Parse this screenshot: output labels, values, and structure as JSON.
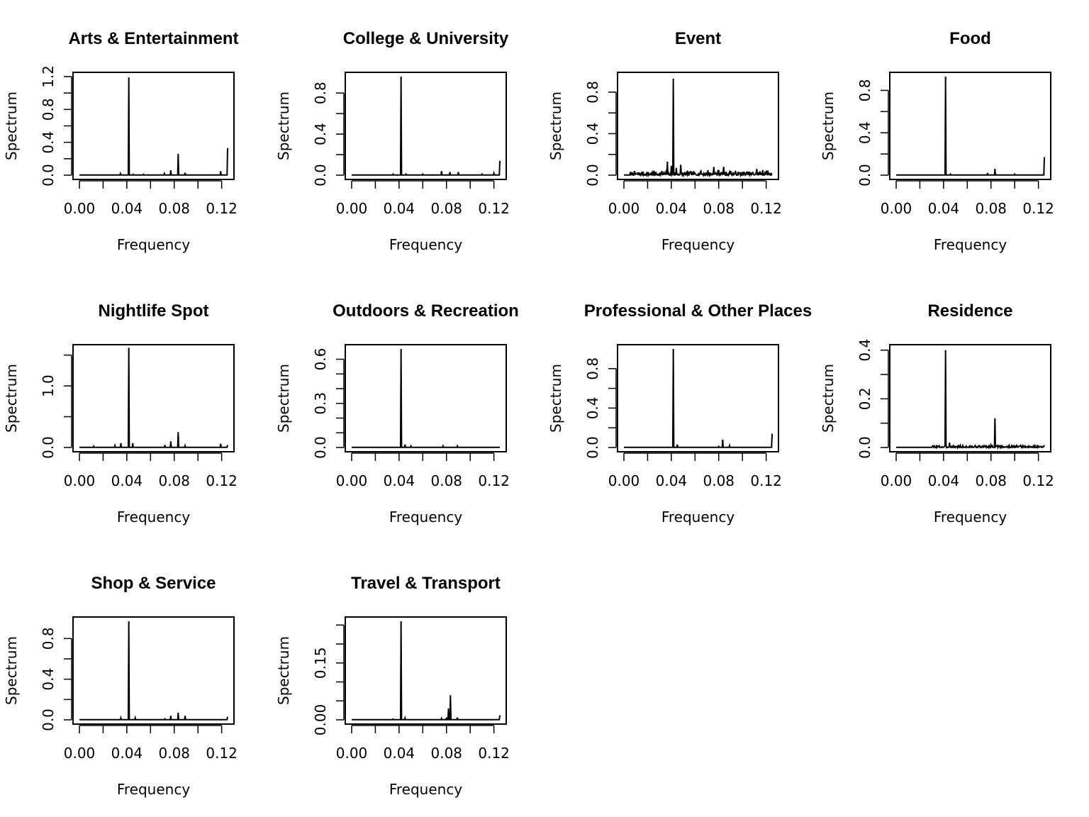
{
  "chart_data": [
    {
      "type": "line",
      "title": "Arts & Entertainment",
      "xlabel": "Frequency",
      "ylabel": "Spectrum",
      "xlim": [
        0,
        0.125
      ],
      "ylim": [
        0,
        1.2
      ],
      "xticks": [
        0.0,
        0.02,
        0.04,
        0.06,
        0.08,
        0.1,
        0.12
      ],
      "xtick_labels": [
        "0.00",
        "0.04",
        "0.08",
        "0.12"
      ],
      "xtick_label_values": [
        0.0,
        0.04,
        0.08,
        0.12
      ],
      "yticks": [
        0.0,
        0.2,
        0.4,
        0.6,
        0.8,
        1.0,
        1.2
      ],
      "ytick_labels": [
        "0.0",
        "0.4",
        "0.8",
        "1.2"
      ],
      "ytick_label_values": [
        0.0,
        0.4,
        0.8,
        1.2
      ],
      "peaks": [
        [
          0.0345,
          0.02
        ],
        [
          0.0417,
          1.19
        ],
        [
          0.0455,
          0.01
        ],
        [
          0.054,
          0.01
        ],
        [
          0.0715,
          0.02
        ],
        [
          0.077,
          0.06
        ],
        [
          0.0833,
          0.26
        ],
        [
          0.089,
          0.03
        ],
        [
          0.119,
          0.05
        ],
        [
          0.125,
          0.33
        ]
      ]
    },
    {
      "type": "line",
      "title": "College & University",
      "xlabel": "Frequency",
      "ylabel": "Spectrum",
      "xlim": [
        0,
        0.125
      ],
      "ylim": [
        0,
        0.96
      ],
      "xticks": [
        0.0,
        0.02,
        0.04,
        0.06,
        0.08,
        0.1,
        0.12
      ],
      "xtick_labels": [
        "0.00",
        "0.04",
        "0.08",
        "0.12"
      ],
      "xtick_label_values": [
        0.0,
        0.04,
        0.08,
        0.12
      ],
      "yticks": [
        0.0,
        0.2,
        0.4,
        0.6,
        0.8
      ],
      "ytick_labels": [
        "0.0",
        "0.4",
        "0.8"
      ],
      "ytick_label_values": [
        0.0,
        0.4,
        0.8
      ],
      "peaks": [
        [
          0.035,
          0.01
        ],
        [
          0.0417,
          0.96
        ],
        [
          0.046,
          0.01
        ],
        [
          0.06,
          0.01
        ],
        [
          0.076,
          0.04
        ],
        [
          0.083,
          0.03
        ],
        [
          0.09,
          0.03
        ],
        [
          0.11,
          0.01
        ],
        [
          0.12,
          0.02
        ],
        [
          0.125,
          0.14
        ]
      ]
    },
    {
      "type": "line",
      "title": "Event",
      "xlabel": "Frequency",
      "ylabel": "Spectrum",
      "xlim": [
        0,
        0.125
      ],
      "ylim": [
        0,
        0.95
      ],
      "xticks": [
        0.0,
        0.02,
        0.04,
        0.06,
        0.08,
        0.1,
        0.12
      ],
      "xtick_labels": [
        "0.00",
        "0.04",
        "0.08",
        "0.12"
      ],
      "xtick_label_values": [
        0.0,
        0.04,
        0.08,
        0.12
      ],
      "yticks": [
        0.0,
        0.2,
        0.4,
        0.6,
        0.8
      ],
      "ytick_labels": [
        "0.0",
        "0.4",
        "0.8"
      ],
      "ytick_label_values": [
        0.0,
        0.4,
        0.8
      ],
      "noise": {
        "seed": 7,
        "level": 0.025,
        "from": 0.005
      },
      "peaks": [
        [
          0.026,
          0.03
        ],
        [
          0.032,
          0.04
        ],
        [
          0.0365,
          0.13
        ],
        [
          0.04,
          0.09
        ],
        [
          0.0417,
          0.93
        ],
        [
          0.044,
          0.07
        ],
        [
          0.048,
          0.1
        ],
        [
          0.054,
          0.03
        ],
        [
          0.065,
          0.04
        ],
        [
          0.071,
          0.05
        ],
        [
          0.076,
          0.08
        ],
        [
          0.08,
          0.05
        ],
        [
          0.084,
          0.08
        ],
        [
          0.09,
          0.04
        ],
        [
          0.1,
          0.03
        ],
        [
          0.112,
          0.06
        ],
        [
          0.117,
          0.05
        ],
        [
          0.121,
          0.03
        ]
      ]
    },
    {
      "type": "line",
      "title": "Food",
      "xlabel": "Frequency",
      "ylabel": "Spectrum",
      "xlim": [
        0,
        0.125
      ],
      "ylim": [
        0,
        0.93
      ],
      "xticks": [
        0.0,
        0.02,
        0.04,
        0.06,
        0.08,
        0.1,
        0.12
      ],
      "xtick_labels": [
        "0.00",
        "0.04",
        "0.08",
        "0.12"
      ],
      "xtick_label_values": [
        0.0,
        0.04,
        0.08,
        0.12
      ],
      "yticks": [
        0.0,
        0.2,
        0.4,
        0.6,
        0.8
      ],
      "ytick_labels": [
        "0.0",
        "0.4",
        "0.8"
      ],
      "ytick_label_values": [
        0.0,
        0.4,
        0.8
      ],
      "peaks": [
        [
          0.0417,
          0.93
        ],
        [
          0.046,
          0.01
        ],
        [
          0.077,
          0.02
        ],
        [
          0.0833,
          0.06
        ],
        [
          0.1,
          0.01
        ],
        [
          0.125,
          0.17
        ]
      ]
    },
    {
      "type": "line",
      "title": "Nightlife Spot",
      "xlabel": "Frequency",
      "ylabel": "Spectrum",
      "xlim": [
        0,
        0.125
      ],
      "ylim": [
        0,
        1.6
      ],
      "xticks": [
        0.0,
        0.02,
        0.04,
        0.06,
        0.08,
        0.1,
        0.12
      ],
      "xtick_labels": [
        "0.00",
        "0.04",
        "0.08",
        "0.12"
      ],
      "xtick_label_values": [
        0.0,
        0.04,
        0.08,
        0.12
      ],
      "yticks": [
        0.0,
        0.5,
        1.0,
        1.5
      ],
      "ytick_labels": [
        "0.0",
        "1.0"
      ],
      "ytick_label_values": [
        0.0,
        1.0
      ],
      "peaks": [
        [
          0.012,
          0.02
        ],
        [
          0.03,
          0.03
        ],
        [
          0.035,
          0.07
        ],
        [
          0.0417,
          1.62
        ],
        [
          0.045,
          0.07
        ],
        [
          0.072,
          0.04
        ],
        [
          0.077,
          0.1
        ],
        [
          0.0833,
          0.25
        ],
        [
          0.089,
          0.03
        ],
        [
          0.119,
          0.06
        ],
        [
          0.125,
          0.04
        ]
      ]
    },
    {
      "type": "line",
      "title": "Outdoors & Recreation",
      "xlabel": "Frequency",
      "ylabel": "Spectrum",
      "xlim": [
        0,
        0.125
      ],
      "ylim": [
        0,
        0.67
      ],
      "xticks": [
        0.0,
        0.02,
        0.04,
        0.06,
        0.08,
        0.1,
        0.12
      ],
      "xtick_labels": [
        "0.00",
        "0.04",
        "0.08",
        "0.12"
      ],
      "xtick_label_values": [
        0.0,
        0.04,
        0.08,
        0.12
      ],
      "yticks": [
        0.0,
        0.1,
        0.2,
        0.3,
        0.4,
        0.5,
        0.6
      ],
      "ytick_labels": [
        "0.0",
        "0.3",
        "0.6"
      ],
      "ytick_label_values": [
        0.0,
        0.3,
        0.6
      ],
      "peaks": [
        [
          0.0417,
          0.67
        ],
        [
          0.045,
          0.02
        ],
        [
          0.05,
          0.01
        ],
        [
          0.077,
          0.01
        ],
        [
          0.089,
          0.01
        ]
      ]
    },
    {
      "type": "line",
      "title": "Professional & Other Places",
      "xlabel": "Frequency",
      "ylabel": "Spectrum",
      "xlim": [
        0,
        0.125
      ],
      "ylim": [
        0,
        1.0
      ],
      "xticks": [
        0.0,
        0.02,
        0.04,
        0.06,
        0.08,
        0.1,
        0.12
      ],
      "xtick_labels": [
        "0.00",
        "0.04",
        "0.08",
        "0.12"
      ],
      "xtick_label_values": [
        0.0,
        0.04,
        0.08,
        0.12
      ],
      "yticks": [
        0.0,
        0.2,
        0.4,
        0.6,
        0.8
      ],
      "ytick_labels": [
        "0.0",
        "0.4",
        "0.8"
      ],
      "ytick_label_values": [
        0.0,
        0.4,
        0.8
      ],
      "peaks": [
        [
          0.0417,
          1.0
        ],
        [
          0.045,
          0.03
        ],
        [
          0.08,
          0.01
        ],
        [
          0.0833,
          0.08
        ],
        [
          0.089,
          0.02
        ],
        [
          0.125,
          0.14
        ]
      ]
    },
    {
      "type": "line",
      "title": "Residence",
      "xlabel": "Frequency",
      "ylabel": "Spectrum",
      "xlim": [
        0,
        0.125
      ],
      "ylim": [
        0,
        0.405
      ],
      "xticks": [
        0.0,
        0.02,
        0.04,
        0.06,
        0.08,
        0.1,
        0.12
      ],
      "xtick_labels": [
        "0.00",
        "0.04",
        "0.08",
        "0.12"
      ],
      "xtick_label_values": [
        0.0,
        0.04,
        0.08,
        0.12
      ],
      "yticks": [
        0.0,
        0.1,
        0.2,
        0.3,
        0.4
      ],
      "ytick_labels": [
        "0.0",
        "0.2",
        "0.4"
      ],
      "ytick_label_values": [
        0.0,
        0.2,
        0.4
      ],
      "noise": {
        "seed": 3,
        "level": 0.006,
        "from": 0.03
      },
      "peaks": [
        [
          0.0417,
          0.4
        ],
        [
          0.045,
          0.02
        ],
        [
          0.076,
          0.01
        ],
        [
          0.08,
          0.01
        ],
        [
          0.0833,
          0.12
        ],
        [
          0.089,
          0.01
        ],
        [
          0.125,
          0.01
        ]
      ]
    },
    {
      "type": "line",
      "title": "Shop & Service",
      "xlabel": "Frequency",
      "ylabel": "Spectrum",
      "xlim": [
        0,
        0.125
      ],
      "ylim": [
        0,
        0.97
      ],
      "xticks": [
        0.0,
        0.02,
        0.04,
        0.06,
        0.08,
        0.1,
        0.12
      ],
      "xtick_labels": [
        "0.00",
        "0.04",
        "0.08",
        "0.12"
      ],
      "xtick_label_values": [
        0.0,
        0.04,
        0.08,
        0.12
      ],
      "yticks": [
        0.0,
        0.2,
        0.4,
        0.6,
        0.8
      ],
      "ytick_labels": [
        "0.0",
        "0.4",
        "0.8"
      ],
      "ytick_label_values": [
        0.0,
        0.4,
        0.8
      ],
      "peaks": [
        [
          0.035,
          0.02
        ],
        [
          0.0417,
          0.97
        ],
        [
          0.047,
          0.02
        ],
        [
          0.072,
          0.01
        ],
        [
          0.077,
          0.04
        ],
        [
          0.0833,
          0.07
        ],
        [
          0.089,
          0.04
        ],
        [
          0.125,
          0.03
        ]
      ]
    },
    {
      "type": "line",
      "title": "Travel & Transport",
      "xlabel": "Frequency",
      "ylabel": "Spectrum",
      "xlim": [
        0,
        0.125
      ],
      "ylim": [
        0,
        0.26
      ],
      "xticks": [
        0.0,
        0.02,
        0.04,
        0.06,
        0.08,
        0.1,
        0.12
      ],
      "xtick_labels": [
        "0.00",
        "0.04",
        "0.08",
        "0.12"
      ],
      "xtick_label_values": [
        0.0,
        0.04,
        0.08,
        0.12
      ],
      "yticks": [
        0.0,
        0.05,
        0.1,
        0.15,
        0.2,
        0.25
      ],
      "ytick_labels": [
        "0.00",
        "0.15"
      ],
      "ytick_label_values": [
        0.0,
        0.15
      ],
      "peaks": [
        [
          0.035,
          0.002
        ],
        [
          0.0417,
          0.26
        ],
        [
          0.045,
          0.005
        ],
        [
          0.076,
          0.004
        ],
        [
          0.08,
          0.006
        ],
        [
          0.0815,
          0.03
        ],
        [
          0.0833,
          0.065
        ],
        [
          0.089,
          0.006
        ],
        [
          0.125,
          0.012
        ]
      ]
    }
  ]
}
